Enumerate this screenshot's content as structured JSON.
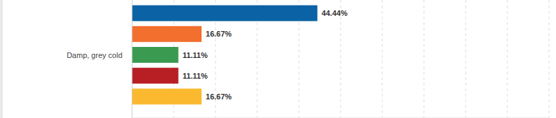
{
  "chart_data": {
    "type": "bar",
    "orientation": "horizontal",
    "categories": [
      "Damp, grey cold"
    ],
    "series": [
      {
        "color": "#0b62a4",
        "values": [
          44.44
        ],
        "value_labels": [
          "44.44%"
        ]
      },
      {
        "color": "#f26f2e",
        "values": [
          16.67
        ],
        "value_labels": [
          "16.67%"
        ]
      },
      {
        "color": "#3a9a50",
        "values": [
          11.11
        ],
        "value_labels": [
          "11.11%"
        ]
      },
      {
        "color": "#b71f24",
        "values": [
          11.11
        ],
        "value_labels": [
          "11.11%"
        ]
      },
      {
        "color": "#fbb92f",
        "values": [
          16.67
        ],
        "value_labels": [
          "16.67%"
        ]
      }
    ],
    "xlim": [
      0,
      100
    ],
    "xticks": [
      0,
      10,
      20,
      30,
      40,
      50,
      60,
      70,
      80,
      90,
      100
    ],
    "grid": true,
    "data_labels": true,
    "tick_labels": "y"
  }
}
